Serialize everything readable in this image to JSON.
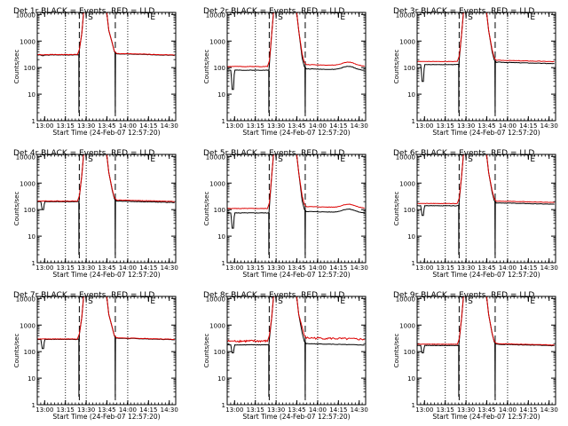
{
  "figure": {
    "panel_grid": "3x3",
    "shared": {
      "ylabel": "Counts/sec",
      "xlabel": "Start Time (24-Feb-07 12:57:20)",
      "x_tick_labels": [
        "13:00",
        "13:15",
        "13:30",
        "13:45",
        "14:00",
        "14:15",
        "14:30"
      ],
      "y_tick_labels": [
        "1",
        "10",
        "100",
        "1000",
        "10000"
      ],
      "markers": {
        "start": "S",
        "end": "E"
      },
      "colors": {
        "events": "#000000",
        "lld": "#dd0000",
        "axes": "#000000"
      }
    }
  },
  "chart_data": [
    {
      "type": "line",
      "title": "Det 1r BLACK = Events, RED = LLD",
      "xlabel": "Start Time (24-Feb-07 12:57:20)",
      "ylabel": "Counts/sec",
      "yscale": "log",
      "ylim": [
        1,
        12000
      ],
      "xlim_min": [
        -2.67,
        97.33
      ],
      "x_ticks_min": [
        2.67,
        17.67,
        32.67,
        47.67,
        62.67,
        77.67,
        92.67
      ],
      "x_tick_labels": [
        "13:00",
        "13:15",
        "13:30",
        "13:45",
        "14:00",
        "14:15",
        "14:30"
      ],
      "dotted_vlines_min": [
        17.67,
        32.67,
        62.67
      ],
      "dashed_vlines_min": [
        27.7,
        53.7
      ],
      "markers": [
        {
          "label": "S",
          "x_min": 32.67
        },
        {
          "label": "E",
          "x_min": 77.67
        }
      ],
      "series": [
        {
          "name": "Events",
          "color": "#000000",
          "baseline_before": 300,
          "baseline_after": 330,
          "dip_min": 280
        },
        {
          "name": "LLD",
          "color": "#dd0000",
          "baseline_before": 310,
          "baseline_after": 340,
          "dip_min": 300
        }
      ]
    },
    {
      "type": "line",
      "title": "Det 2r BLACK = Events, RED = LLD",
      "xlabel": "Start Time (24-Feb-07 12:57:20)",
      "ylabel": "Counts/sec",
      "yscale": "log",
      "ylim": [
        1,
        12000
      ],
      "xlim_min": [
        -2.67,
        97.33
      ],
      "x_ticks_min": [
        2.67,
        17.67,
        32.67,
        47.67,
        62.67,
        77.67,
        92.67
      ],
      "x_tick_labels": [
        "13:00",
        "13:15",
        "13:30",
        "13:45",
        "14:00",
        "14:15",
        "14:30"
      ],
      "dotted_vlines_min": [
        17.67,
        32.67,
        62.67
      ],
      "dashed_vlines_min": [
        27.7,
        53.7
      ],
      "markers": [
        {
          "label": "S",
          "x_min": 32.67
        },
        {
          "label": "E",
          "x_min": 77.67
        }
      ],
      "series": [
        {
          "name": "Events",
          "color": "#000000",
          "baseline_before": 80,
          "baseline_after": 90,
          "dip_min": 15
        },
        {
          "name": "LLD",
          "color": "#dd0000",
          "baseline_before": 110,
          "baseline_after": 130,
          "dip_min": 110
        }
      ]
    },
    {
      "type": "line",
      "title": "Det 3r BLACK = Events, RED = LLD",
      "xlabel": "Start Time (24-Feb-07 12:57:20)",
      "ylabel": "Counts/sec",
      "yscale": "log",
      "ylim": [
        1,
        12000
      ],
      "xlim_min": [
        -2.67,
        97.33
      ],
      "x_ticks_min": [
        2.67,
        17.67,
        32.67,
        47.67,
        62.67,
        77.67,
        92.67
      ],
      "x_tick_labels": [
        "13:00",
        "13:15",
        "13:30",
        "13:45",
        "14:00",
        "14:15",
        "14:30"
      ],
      "dotted_vlines_min": [
        17.67,
        32.67,
        62.67
      ],
      "dashed_vlines_min": [
        27.7,
        53.7
      ],
      "markers": [
        {
          "label": "S",
          "x_min": 32.67
        },
        {
          "label": "E",
          "x_min": 77.67
        }
      ],
      "series": [
        {
          "name": "Events",
          "color": "#000000",
          "baseline_before": 130,
          "baseline_after": 160,
          "dip_min": 30
        },
        {
          "name": "LLD",
          "color": "#dd0000",
          "baseline_before": 170,
          "baseline_after": 190,
          "dip_min": 170
        }
      ]
    },
    {
      "type": "line",
      "title": "Det 4r BLACK = Events, RED = LLD",
      "xlabel": "Start Time (24-Feb-07 12:57:20)",
      "ylabel": "Counts/sec",
      "yscale": "log",
      "ylim": [
        1,
        12000
      ],
      "xlim_min": [
        -2.67,
        97.33
      ],
      "x_ticks_min": [
        2.67,
        17.67,
        32.67,
        47.67,
        62.67,
        77.67,
        92.67
      ],
      "x_tick_labels": [
        "13:00",
        "13:15",
        "13:30",
        "13:45",
        "14:00",
        "14:15",
        "14:30"
      ],
      "dotted_vlines_min": [
        17.67,
        32.67,
        62.67
      ],
      "dashed_vlines_min": [
        27.7,
        53.7
      ],
      "markers": [
        {
          "label": "S",
          "x_min": 32.67
        },
        {
          "label": "E",
          "x_min": 77.67
        }
      ],
      "series": [
        {
          "name": "Events",
          "color": "#000000",
          "baseline_before": 200,
          "baseline_after": 210,
          "dip_min": 100
        },
        {
          "name": "LLD",
          "color": "#dd0000",
          "baseline_before": 210,
          "baseline_after": 230,
          "dip_min": 210
        }
      ]
    },
    {
      "type": "line",
      "title": "Det 5r BLACK = Events, RED = LLD",
      "xlabel": "Start Time (24-Feb-07 12:57:20)",
      "ylabel": "Counts/sec",
      "yscale": "log",
      "ylim": [
        1,
        12000
      ],
      "xlim_min": [
        -2.67,
        97.33
      ],
      "x_ticks_min": [
        2.67,
        17.67,
        32.67,
        47.67,
        62.67,
        77.67,
        92.67
      ],
      "x_tick_labels": [
        "13:00",
        "13:15",
        "13:30",
        "13:45",
        "14:00",
        "14:15",
        "14:30"
      ],
      "dotted_vlines_min": [
        17.67,
        32.67,
        62.67
      ],
      "dashed_vlines_min": [
        27.7,
        53.7
      ],
      "markers": [
        {
          "label": "S",
          "x_min": 32.67
        },
        {
          "label": "E",
          "x_min": 77.67
        }
      ],
      "series": [
        {
          "name": "Events",
          "color": "#000000",
          "baseline_before": 75,
          "baseline_after": 85,
          "dip_min": 20
        },
        {
          "name": "LLD",
          "color": "#dd0000",
          "baseline_before": 110,
          "baseline_after": 130,
          "dip_min": 110
        }
      ]
    },
    {
      "type": "line",
      "title": "Det 6r BLACK = Events, RED = LLD",
      "xlabel": "Start Time (24-Feb-07 12:57:20)",
      "ylabel": "Counts/sec",
      "yscale": "log",
      "ylim": [
        1,
        12000
      ],
      "xlim_min": [
        -2.67,
        97.33
      ],
      "x_ticks_min": [
        2.67,
        17.67,
        32.67,
        47.67,
        62.67,
        77.67,
        92.67
      ],
      "x_tick_labels": [
        "13:00",
        "13:15",
        "13:30",
        "13:45",
        "14:00",
        "14:15",
        "14:30"
      ],
      "dotted_vlines_min": [
        17.67,
        32.67,
        62.67
      ],
      "dashed_vlines_min": [
        27.7,
        53.7
      ],
      "markers": [
        {
          "label": "S",
          "x_min": 32.67
        },
        {
          "label": "E",
          "x_min": 77.67
        }
      ],
      "series": [
        {
          "name": "Events",
          "color": "#000000",
          "baseline_before": 140,
          "baseline_after": 180,
          "dip_min": 60
        },
        {
          "name": "LLD",
          "color": "#dd0000",
          "baseline_before": 170,
          "baseline_after": 210,
          "dip_min": 170
        }
      ]
    },
    {
      "type": "line",
      "title": "Det 7r BLACK = Events, RED = LLD",
      "xlabel": "Start Time (24-Feb-07 12:57:20)",
      "ylabel": "Counts/sec",
      "yscale": "log",
      "ylim": [
        1,
        12000
      ],
      "xlim_min": [
        -2.67,
        97.33
      ],
      "x_ticks_min": [
        2.67,
        17.67,
        32.67,
        47.67,
        62.67,
        77.67,
        92.67
      ],
      "x_tick_labels": [
        "13:00",
        "13:15",
        "13:30",
        "13:45",
        "14:00",
        "14:15",
        "14:30"
      ],
      "dotted_vlines_min": [
        17.67,
        32.67,
        62.67
      ],
      "dashed_vlines_min": [
        27.7,
        53.7
      ],
      "markers": [
        {
          "label": "S",
          "x_min": 32.67
        },
        {
          "label": "E",
          "x_min": 77.67
        }
      ],
      "series": [
        {
          "name": "Events",
          "color": "#000000",
          "baseline_before": 290,
          "baseline_after": 320,
          "dip_min": 130
        },
        {
          "name": "LLD",
          "color": "#dd0000",
          "baseline_before": 300,
          "baseline_after": 330,
          "dip_min": 300
        }
      ]
    },
    {
      "type": "line",
      "title": "Det 8r BLACK = Events, RED = LLD",
      "xlabel": "Start Time (24-Feb-07 12:57:20)",
      "ylabel": "Counts/sec",
      "yscale": "log",
      "ylim": [
        1,
        12000
      ],
      "xlim_min": [
        -2.67,
        97.33
      ],
      "x_ticks_min": [
        2.67,
        17.67,
        32.67,
        47.67,
        62.67,
        77.67,
        92.67
      ],
      "x_tick_labels": [
        "13:00",
        "13:15",
        "13:30",
        "13:45",
        "14:00",
        "14:15",
        "14:30"
      ],
      "dotted_vlines_min": [
        17.67,
        32.67,
        62.67
      ],
      "dashed_vlines_min": [
        27.7,
        53.7
      ],
      "markers": [
        {
          "label": "S",
          "x_min": 32.67
        },
        {
          "label": "E",
          "x_min": 77.67
        }
      ],
      "series": [
        {
          "name": "Events",
          "color": "#000000",
          "baseline_before": 180,
          "baseline_after": 200,
          "dip_min": 90
        },
        {
          "name": "LLD",
          "color": "#dd0000",
          "baseline_before": 250,
          "baseline_after": 330,
          "dip_min": 250
        }
      ]
    },
    {
      "type": "line",
      "title": "Det 9r BLACK = Events, RED = LLD",
      "xlabel": "Start Time (24-Feb-07 12:57:20)",
      "ylabel": "Counts/sec",
      "yscale": "log",
      "ylim": [
        1,
        12000
      ],
      "xlim_min": [
        -2.67,
        97.33
      ],
      "x_ticks_min": [
        2.67,
        17.67,
        32.67,
        47.67,
        62.67,
        77.67,
        92.67
      ],
      "x_tick_labels": [
        "13:00",
        "13:15",
        "13:30",
        "13:45",
        "14:00",
        "14:15",
        "14:30"
      ],
      "dotted_vlines_min": [
        17.67,
        32.67,
        62.67
      ],
      "dashed_vlines_min": [
        27.7,
        53.7
      ],
      "markers": [
        {
          "label": "S",
          "x_min": 32.67
        },
        {
          "label": "E",
          "x_min": 77.67
        }
      ],
      "series": [
        {
          "name": "Events",
          "color": "#000000",
          "baseline_before": 170,
          "baseline_after": 190,
          "dip_min": 90
        },
        {
          "name": "LLD",
          "color": "#dd0000",
          "baseline_before": 190,
          "baseline_after": 200,
          "dip_min": 190
        }
      ]
    }
  ]
}
